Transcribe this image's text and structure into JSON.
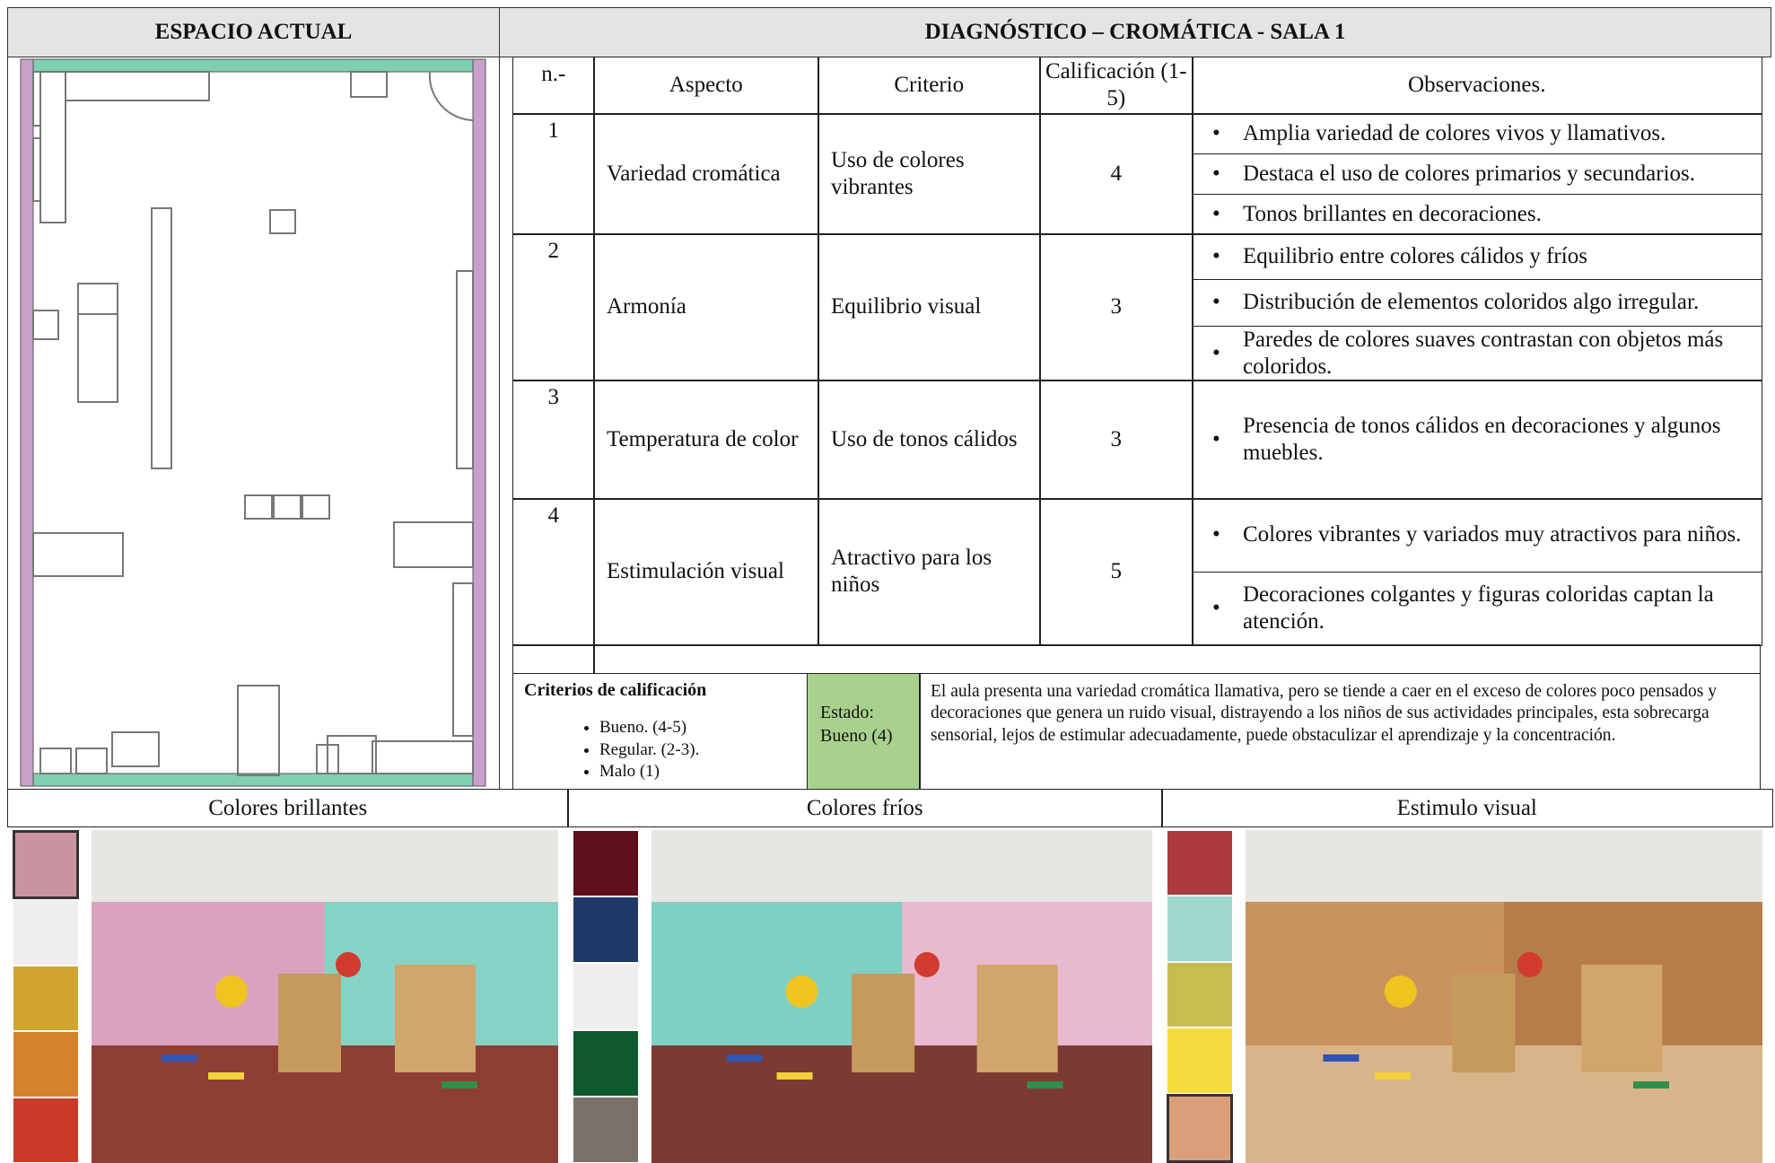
{
  "header": {
    "left_title": "ESPACIO ACTUAL",
    "right_title": "DIAGNÓSTICO – CROMÁTICA - SALA 1"
  },
  "table": {
    "headers": [
      "n.-",
      "Aspecto",
      "Criterio",
      "Calificación (1-5)",
      "Observaciones."
    ],
    "rows": [
      {
        "n": "1",
        "aspecto": "Variedad cromática",
        "criterio": "Uso de colores vibrantes",
        "calificacion": "4",
        "observaciones": [
          "Amplia variedad de colores vivos y llamativos.",
          "Destaca el uso de colores primarios y secundarios.",
          "Tonos brillantes en decoraciones."
        ]
      },
      {
        "n": "2",
        "aspecto": "Armonía",
        "criterio": "Equilibrio visual",
        "calificacion": "3",
        "observaciones": [
          "Equilibrio entre colores cálidos y fríos",
          "Distribución de elementos coloridos algo irregular.",
          "Paredes de colores suaves contrastan con objetos más coloridos."
        ]
      },
      {
        "n": "3",
        "aspecto": "Temperatura de color",
        "criterio": "Uso de tonos cálidos",
        "calificacion": "3",
        "observaciones": [
          "Presencia de tonos cálidos en decoraciones y algunos muebles."
        ]
      },
      {
        "n": "4",
        "aspecto": "Estimulación visual",
        "criterio": "Atractivo para los niños",
        "calificacion": "5",
        "observaciones": [
          "Colores vibrantes y variados muy atractivos para niños.",
          "Decoraciones colgantes y figuras coloridas captan la atención."
        ]
      }
    ]
  },
  "criteria": {
    "title": "Criterios de calificación",
    "items": [
      "Bueno. (4-5)",
      "Regular. (2-3).",
      "Malo (1)"
    ],
    "estado": "Estado: Bueno (4)",
    "summary": "El aula presenta una variedad cromática llamativa, pero se tiende a caer en el exceso de colores poco pensados y decoraciones que genera un ruido visual, distrayendo a los niños de sus actividades principales, esta sobrecarga sensorial, lejos de estimular adecuadamente, puede obstaculizar el aprendizaje y la concentración."
  },
  "panels": [
    {
      "title": "Colores brillantes",
      "swatches": [
        "#c9939f",
        "#eeeeec",
        "#d0a42e",
        "#d4822c",
        "#c93a28"
      ]
    },
    {
      "title": "Colores fríos",
      "swatches": [
        "#5e0f1a",
        "#1f3868",
        "#eeeeec",
        "#0e5a2c",
        "#7a706a"
      ]
    },
    {
      "title": "Estimulo visual",
      "swatches": [
        "#ad3a40",
        "#9fd8cc",
        "#c9bc4e",
        "#f5dc3c",
        "#d9a079"
      ]
    }
  ]
}
